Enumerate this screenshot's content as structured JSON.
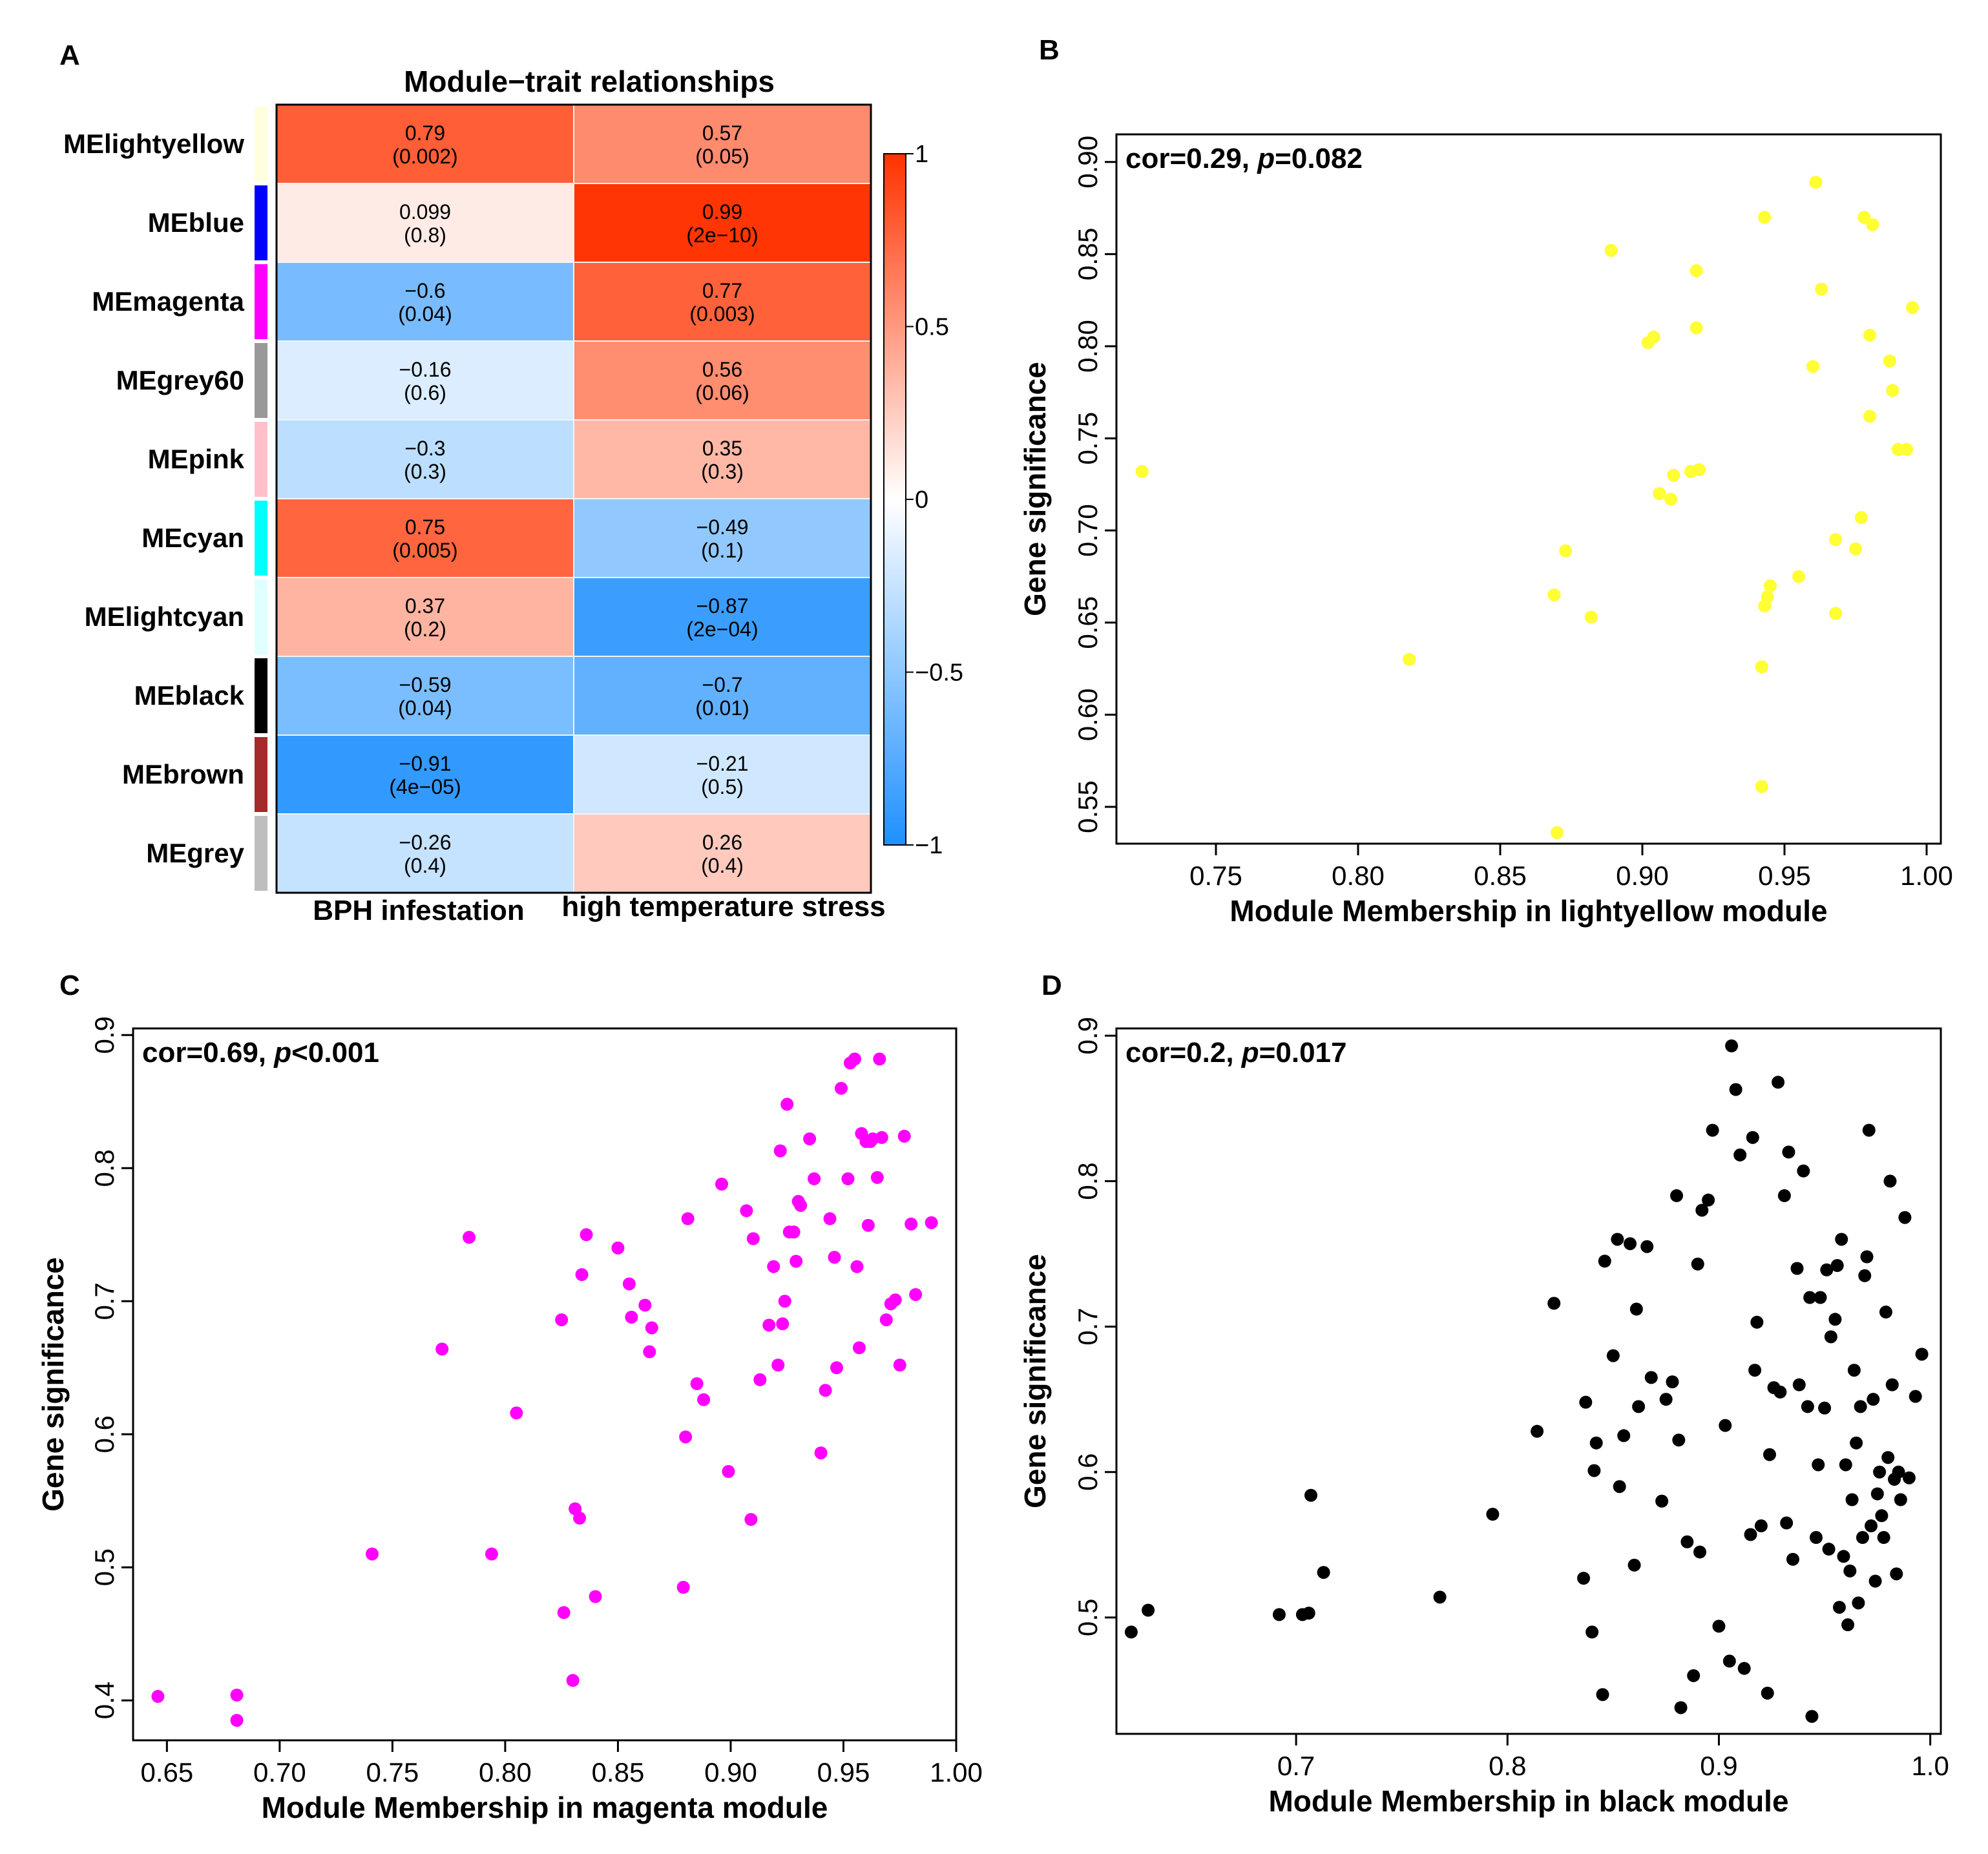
{
  "panels": {
    "A": "A",
    "B": "B",
    "C": "C",
    "D": "D"
  },
  "chart_data": [
    {
      "type": "heatmap",
      "panel": "A",
      "title": "Module−trait relationships",
      "columns": [
        "BPH infestation",
        "high temperature stress"
      ],
      "rows": [
        {
          "name": "MElightyellow",
          "module_color": "#ffffe0",
          "values": [
            0.79,
            0.57
          ],
          "labels": [
            "0.79",
            "0.57"
          ],
          "pvalues": [
            "(0.002)",
            "(0.05)"
          ]
        },
        {
          "name": "MEblue",
          "module_color": "#0000ff",
          "values": [
            0.099,
            0.99
          ],
          "labels": [
            "0.099",
            "0.99"
          ],
          "pvalues": [
            "(0.8)",
            "(2e−10)"
          ]
        },
        {
          "name": "MEmagenta",
          "module_color": "#ff00ff",
          "values": [
            -0.6,
            0.77
          ],
          "labels": [
            "−0.6",
            "0.77"
          ],
          "pvalues": [
            "(0.04)",
            "(0.003)"
          ]
        },
        {
          "name": "MEgrey60",
          "module_color": "#999999",
          "values": [
            -0.16,
            0.56
          ],
          "labels": [
            "−0.16",
            "0.56"
          ],
          "pvalues": [
            "(0.6)",
            "(0.06)"
          ]
        },
        {
          "name": "MEpink",
          "module_color": "#ffc0cb",
          "values": [
            -0.3,
            0.35
          ],
          "labels": [
            "−0.3",
            "0.35"
          ],
          "pvalues": [
            "(0.3)",
            "(0.3)"
          ]
        },
        {
          "name": "MEcyan",
          "module_color": "#00ffff",
          "values": [
            0.75,
            -0.49
          ],
          "labels": [
            "0.75",
            "−0.49"
          ],
          "pvalues": [
            "(0.005)",
            "(0.1)"
          ]
        },
        {
          "name": "MElightcyan",
          "module_color": "#e0ffff",
          "values": [
            0.37,
            -0.87
          ],
          "labels": [
            "0.37",
            "−0.87"
          ],
          "pvalues": [
            "(0.2)",
            "(2e−04)"
          ]
        },
        {
          "name": "MEblack",
          "module_color": "#000000",
          "values": [
            -0.59,
            -0.7
          ],
          "labels": [
            "−0.59",
            "−0.7"
          ],
          "pvalues": [
            "(0.04)",
            "(0.01)"
          ]
        },
        {
          "name": "MEbrown",
          "module_color": "#a52a2a",
          "values": [
            -0.91,
            -0.21
          ],
          "labels": [
            "−0.91",
            "−0.21"
          ],
          "pvalues": [
            "(4e−05)",
            "(0.5)"
          ]
        },
        {
          "name": "MEgrey",
          "module_color": "#bebebe",
          "values": [
            -0.26,
            0.26
          ],
          "labels": [
            "−0.26",
            "0.26"
          ],
          "pvalues": [
            "(0.4)",
            "(0.4)"
          ]
        }
      ],
      "colorbar": {
        "range": [
          -1,
          1
        ],
        "ticks": [
          1,
          0.5,
          0,
          -0.5,
          -1
        ],
        "tick_labels": [
          "1",
          "0.5",
          "0",
          "−0.5",
          "−1"
        ],
        "low_color": "#1e90ff",
        "mid_color": "#ffffff",
        "high_color": "#ff3300"
      }
    },
    {
      "type": "scatter",
      "panel": "B",
      "annotation_prefix": "cor=0.29, ",
      "annotation_p": "p",
      "annotation_suffix": "=0.082",
      "xlabel": "Module Membership in lightyellow module",
      "ylabel": "Gene significance",
      "xlim": [
        0.715,
        1.005
      ],
      "ylim": [
        0.53,
        0.915
      ],
      "xticks": [
        0.75,
        0.8,
        0.85,
        0.9,
        0.95,
        1.0
      ],
      "xtick_labels": [
        "0.75",
        "0.80",
        "0.85",
        "0.90",
        "0.95",
        "1.00"
      ],
      "yticks": [
        0.55,
        0.6,
        0.65,
        0.7,
        0.75,
        0.8,
        0.85,
        0.9
      ],
      "ytick_labels": [
        "0.55",
        "0.60",
        "0.65",
        "0.70",
        "0.75",
        "0.80",
        "0.85",
        "0.90"
      ],
      "point_color": "#ffff33",
      "x": [
        0.724,
        0.818,
        0.87,
        0.869,
        0.873,
        0.882,
        0.889,
        0.902,
        0.904,
        0.906,
        0.91,
        0.911,
        0.917,
        0.919,
        0.919,
        0.92,
        0.942,
        0.942,
        0.943,
        0.943,
        0.944,
        0.945,
        0.955,
        0.96,
        0.961,
        0.963,
        0.968,
        0.968,
        0.975,
        0.977,
        0.978,
        0.98,
        0.98,
        0.981,
        0.987,
        0.988,
        0.99,
        0.993,
        0.995
      ],
      "y": [
        0.732,
        0.63,
        0.536,
        0.665,
        0.689,
        0.653,
        0.852,
        0.802,
        0.805,
        0.72,
        0.717,
        0.73,
        0.732,
        0.81,
        0.841,
        0.733,
        0.561,
        0.626,
        0.87,
        0.659,
        0.664,
        0.67,
        0.675,
        0.789,
        0.889,
        0.831,
        0.695,
        0.655,
        0.69,
        0.707,
        0.87,
        0.762,
        0.806,
        0.866,
        0.792,
        0.776,
        0.744,
        0.744,
        0.821
      ]
    },
    {
      "type": "scatter",
      "panel": "C",
      "annotation_prefix": "cor=0.69, ",
      "annotation_p": "p",
      "annotation_suffix": "<0.001",
      "xlabel": "Module Membership in magenta module",
      "ylabel": "Gene significance",
      "xlim": [
        0.635,
        1.0
      ],
      "ylim": [
        0.37,
        0.905
      ],
      "xticks": [
        0.65,
        0.7,
        0.75,
        0.8,
        0.85,
        0.9,
        0.95,
        1.0
      ],
      "xtick_labels": [
        "0.65",
        "0.70",
        "0.75",
        "0.80",
        "0.85",
        "0.90",
        "0.95",
        "1.00"
      ],
      "yticks": [
        0.4,
        0.5,
        0.6,
        0.7,
        0.8,
        0.9
      ],
      "ytick_labels": [
        "0.4",
        "0.5",
        "0.6",
        "0.7",
        "0.8",
        "0.9"
      ],
      "point_color": "#ff00ff",
      "x": [
        0.646,
        0.681,
        0.681,
        0.741,
        0.772,
        0.784,
        0.794,
        0.805,
        0.825,
        0.826,
        0.83,
        0.831,
        0.833,
        0.834,
        0.836,
        0.84,
        0.85,
        0.855,
        0.856,
        0.862,
        0.864,
        0.865,
        0.879,
        0.88,
        0.881,
        0.885,
        0.888,
        0.896,
        0.899,
        0.907,
        0.909,
        0.91,
        0.913,
        0.917,
        0.919,
        0.921,
        0.922,
        0.923,
        0.924,
        0.925,
        0.926,
        0.928,
        0.929,
        0.93,
        0.931,
        0.935,
        0.937,
        0.94,
        0.942,
        0.944,
        0.946,
        0.947,
        0.949,
        0.952,
        0.953,
        0.955,
        0.956,
        0.957,
        0.958,
        0.96,
        0.961,
        0.962,
        0.963,
        0.965,
        0.966,
        0.967,
        0.969,
        0.971,
        0.973,
        0.975,
        0.977,
        0.98,
        0.982,
        0.989
      ],
      "y": [
        0.403,
        0.404,
        0.385,
        0.51,
        0.664,
        0.748,
        0.51,
        0.616,
        0.686,
        0.466,
        0.415,
        0.544,
        0.537,
        0.72,
        0.75,
        0.478,
        0.74,
        0.713,
        0.688,
        0.697,
        0.662,
        0.68,
        0.485,
        0.598,
        0.762,
        0.638,
        0.626,
        0.788,
        0.572,
        0.768,
        0.536,
        0.747,
        0.641,
        0.682,
        0.726,
        0.652,
        0.813,
        0.683,
        0.7,
        0.848,
        0.752,
        0.752,
        0.73,
        0.775,
        0.772,
        0.822,
        0.792,
        0.586,
        0.633,
        0.762,
        0.733,
        0.65,
        0.86,
        0.792,
        0.879,
        0.882,
        0.726,
        0.665,
        0.826,
        0.82,
        0.757,
        0.82,
        0.822,
        0.793,
        0.882,
        0.823,
        0.686,
        0.698,
        0.701,
        0.652,
        0.824,
        0.758,
        0.705,
        0.759
      ]
    },
    {
      "type": "scatter",
      "panel": "D",
      "annotation_prefix": "cor=0.2, ",
      "annotation_p": "p",
      "annotation_suffix": "=0.017",
      "xlabel": "Module Membership in black module",
      "ylabel": "Gene significance",
      "xlim": [
        0.615,
        1.005
      ],
      "ylim": [
        0.42,
        0.905
      ],
      "xticks": [
        0.7,
        0.8,
        0.9,
        1.0
      ],
      "xtick_labels": [
        "0.7",
        "0.8",
        "0.9",
        "1.0"
      ],
      "yticks": [
        0.5,
        0.6,
        0.7,
        0.8,
        0.9
      ],
      "ytick_labels": [
        "0.5",
        "0.6",
        "0.7",
        "0.8",
        "0.9"
      ],
      "point_color": "#000000",
      "x": [
        0.622,
        0.63,
        0.692,
        0.703,
        0.706,
        0.707,
        0.713,
        0.768,
        0.793,
        0.814,
        0.822,
        0.836,
        0.837,
        0.84,
        0.841,
        0.842,
        0.845,
        0.846,
        0.85,
        0.852,
        0.853,
        0.855,
        0.858,
        0.86,
        0.861,
        0.862,
        0.866,
        0.868,
        0.873,
        0.875,
        0.878,
        0.88,
        0.881,
        0.882,
        0.885,
        0.888,
        0.89,
        0.891,
        0.892,
        0.895,
        0.897,
        0.9,
        0.903,
        0.905,
        0.906,
        0.908,
        0.91,
        0.912,
        0.915,
        0.916,
        0.917,
        0.918,
        0.92,
        0.923,
        0.924,
        0.926,
        0.928,
        0.929,
        0.931,
        0.932,
        0.933,
        0.935,
        0.937,
        0.938,
        0.94,
        0.942,
        0.943,
        0.944,
        0.946,
        0.947,
        0.948,
        0.95,
        0.951,
        0.952,
        0.953,
        0.955,
        0.956,
        0.957,
        0.958,
        0.959,
        0.96,
        0.961,
        0.962,
        0.963,
        0.964,
        0.965,
        0.966,
        0.967,
        0.968,
        0.969,
        0.97,
        0.971,
        0.972,
        0.973,
        0.974,
        0.975,
        0.976,
        0.977,
        0.978,
        0.979,
        0.98,
        0.981,
        0.982,
        0.983,
        0.984,
        0.985,
        0.986,
        0.988,
        0.99,
        0.993,
        0.996
      ],
      "y": [
        0.49,
        0.505,
        0.502,
        0.502,
        0.503,
        0.584,
        0.531,
        0.514,
        0.571,
        0.628,
        0.716,
        0.527,
        0.648,
        0.49,
        0.601,
        0.62,
        0.447,
        0.745,
        0.68,
        0.76,
        0.59,
        0.625,
        0.757,
        0.536,
        0.712,
        0.645,
        0.755,
        0.665,
        0.58,
        0.65,
        0.662,
        0.79,
        0.622,
        0.438,
        0.552,
        0.46,
        0.743,
        0.545,
        0.78,
        0.787,
        0.835,
        0.494,
        0.632,
        0.47,
        0.893,
        0.863,
        0.818,
        0.465,
        0.557,
        0.83,
        0.67,
        0.703,
        0.563,
        0.448,
        0.612,
        0.658,
        0.868,
        0.655,
        0.79,
        0.565,
        0.82,
        0.54,
        0.74,
        0.66,
        0.807,
        0.645,
        0.72,
        0.432,
        0.555,
        0.605,
        0.72,
        0.644,
        0.739,
        0.547,
        0.693,
        0.705,
        0.742,
        0.507,
        0.76,
        0.542,
        0.605,
        0.495,
        0.532,
        0.581,
        0.67,
        0.62,
        0.51,
        0.645,
        0.555,
        0.735,
        0.748,
        0.835,
        0.563,
        0.65,
        0.525,
        0.585,
        0.6,
        0.57,
        0.555,
        0.71,
        0.61,
        0.8,
        0.66,
        0.595,
        0.53,
        0.6,
        0.581,
        0.775,
        0.596,
        0.652,
        0.681
      ]
    }
  ]
}
